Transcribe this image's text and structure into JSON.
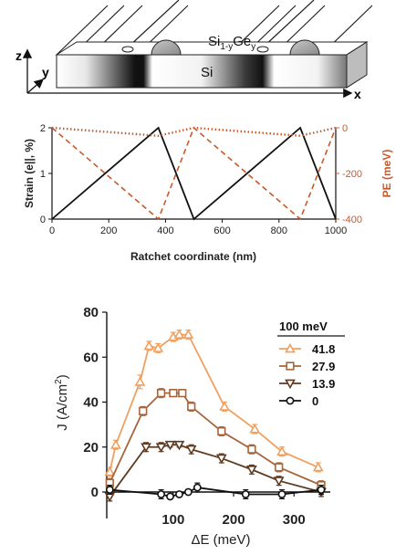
{
  "schematic": {
    "z_axis_label": "z",
    "y_axis_label": "y",
    "x_axis_label": "x",
    "sige_label_main": "Si",
    "sige_label_sub": "1-y",
    "sige_label_main2": "Ge",
    "sige_label_sub2": "y",
    "si_label": "Si"
  },
  "chart_data": [
    {
      "type": "line",
      "title": "",
      "xlabel": "Ratchet coordinate (nm)",
      "ylabel_left": "Strain (e||, %)",
      "ylabel_right": "PE (meV)",
      "xlim": [
        0,
        1000
      ],
      "ylim_left": [
        0,
        2
      ],
      "ylim_right": [
        -400,
        0
      ],
      "xticks": [
        "0",
        "200",
        "400",
        "600",
        "800",
        "1000"
      ],
      "yticks_left": [
        "0",
        "1",
        "2"
      ],
      "yticks_right": [
        "0",
        "-200",
        "-400"
      ],
      "colors": {
        "strain": "#111111",
        "pe": "#c8592a"
      },
      "series": [
        {
          "name": "",
          "axis": "left",
          "style": "solid",
          "color": "#111111",
          "x": [
            0,
            375,
            500,
            875,
            1000
          ],
          "y": [
            0,
            2,
            0,
            2,
            0
          ]
        },
        {
          "name": "",
          "axis": "right",
          "style": "dashed",
          "color": "#c8592a",
          "x": [
            0,
            375,
            500,
            875,
            1000
          ],
          "y": [
            0,
            -400,
            0,
            -400,
            0
          ]
        },
        {
          "name": "",
          "axis": "right",
          "style": "dotted",
          "color": "#c8592a",
          "x": [
            0,
            375,
            500,
            875,
            1000
          ],
          "y": [
            0,
            -35,
            0,
            -35,
            0
          ]
        }
      ]
    },
    {
      "type": "line",
      "title": "",
      "xlabel": "ΔE (meV)",
      "ylabel": "J (A/cm²)",
      "ylabel_main": "J (A/cm",
      "ylabel_sup": "2",
      "ylabel_tail": ")",
      "xlim": [
        -10,
        360
      ],
      "ylim": [
        -5,
        80
      ],
      "xticks": [
        "100",
        "200",
        "300"
      ],
      "yticks": [
        "0",
        "20",
        "40",
        "60",
        "80"
      ],
      "legend_title": "100 meV",
      "legend_position": "top-right",
      "series": [
        {
          "name": "41.8",
          "marker": "triangle-up",
          "color": "#f0a060",
          "x": [
            -5,
            5,
            45,
            60,
            75,
            100,
            110,
            125,
            185,
            235,
            280,
            340
          ],
          "y": [
            9,
            21,
            49,
            65,
            64,
            69,
            70,
            70,
            38,
            28,
            18,
            11
          ],
          "err": [
            2,
            2,
            3,
            2,
            2,
            2,
            2,
            2,
            2,
            2,
            2,
            2
          ]
        },
        {
          "name": "27.9",
          "marker": "square",
          "color": "#a8643a",
          "x": [
            -5,
            50,
            80,
            100,
            115,
            130,
            180,
            230,
            275,
            345
          ],
          "y": [
            4,
            36,
            44,
            44,
            44,
            38,
            27,
            19,
            11,
            3
          ],
          "err": [
            2,
            2,
            2,
            1,
            1,
            2,
            2,
            2,
            2,
            2
          ]
        },
        {
          "name": "13.9",
          "marker": "triangle-down",
          "color": "#5e3a20",
          "x": [
            -5,
            55,
            80,
            95,
            110,
            130,
            180,
            230,
            275,
            345
          ],
          "y": [
            -2,
            20,
            20,
            21,
            21,
            19,
            15,
            10,
            5,
            0
          ],
          "err": [
            2,
            2,
            2,
            1,
            1,
            2,
            2,
            2,
            2,
            2
          ]
        },
        {
          "name": "0",
          "marker": "circle",
          "color": "#111111",
          "x": [
            -5,
            80,
            95,
            110,
            125,
            140,
            220,
            280,
            345
          ],
          "y": [
            1,
            -1,
            -2,
            -1,
            0,
            2,
            -1,
            -1,
            1
          ],
          "err": [
            2,
            2,
            1,
            1,
            1,
            2,
            2,
            2,
            2
          ]
        }
      ]
    }
  ]
}
